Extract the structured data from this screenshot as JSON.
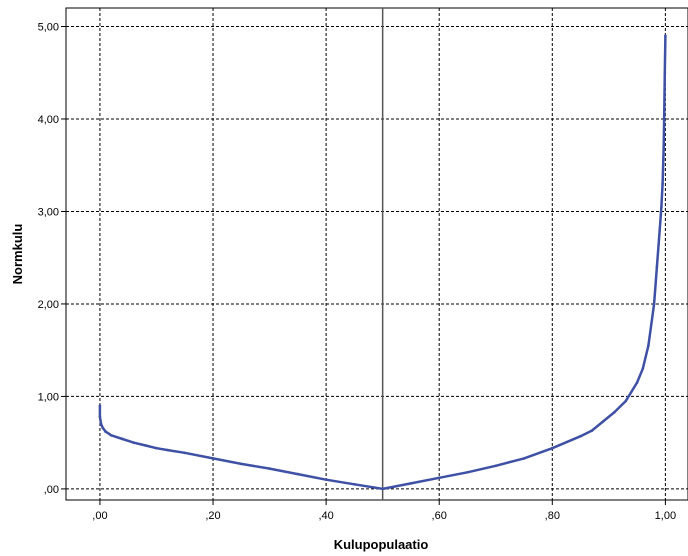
{
  "chart_data": {
    "type": "scatter",
    "title": "",
    "xlabel": "Kulupopulaatio",
    "ylabel": "Normkulu",
    "xlim": [
      -0.06,
      1.04
    ],
    "ylim": [
      -0.12,
      5.2
    ],
    "x_ticks": [
      0.0,
      0.2,
      0.4,
      0.6,
      0.8,
      1.0
    ],
    "x_tick_labels": [
      ",00",
      ",20",
      ",40",
      ",60",
      ",80",
      "1,00"
    ],
    "y_ticks": [
      0.0,
      1.0,
      2.0,
      3.0,
      4.0,
      5.0
    ],
    "y_tick_labels": [
      ",00",
      "1,00",
      "2,00",
      "3,00",
      "4,00",
      "5,00"
    ],
    "grid": true,
    "reference_line_x": 0.5,
    "series": [
      {
        "color": "#3f51a5",
        "x": [
          0.0,
          0.0,
          0.002,
          0.005,
          0.01,
          0.02,
          0.04,
          0.06,
          0.08,
          0.1,
          0.12,
          0.15,
          0.2,
          0.25,
          0.3,
          0.35,
          0.4,
          0.45,
          0.5,
          0.55,
          0.6,
          0.65,
          0.7,
          0.75,
          0.8,
          0.85,
          0.87,
          0.89,
          0.91,
          0.93,
          0.95,
          0.96,
          0.97,
          0.98,
          0.985,
          0.99,
          0.993,
          0.995,
          0.997,
          0.998,
          0.999,
          1.0
        ],
        "y": [
          0.9,
          0.78,
          0.7,
          0.66,
          0.62,
          0.58,
          0.54,
          0.5,
          0.47,
          0.44,
          0.42,
          0.39,
          0.33,
          0.27,
          0.22,
          0.16,
          0.1,
          0.05,
          0.0,
          0.06,
          0.12,
          0.18,
          0.25,
          0.33,
          0.44,
          0.57,
          0.63,
          0.73,
          0.83,
          0.95,
          1.15,
          1.3,
          1.55,
          2.0,
          2.4,
          2.8,
          3.05,
          3.3,
          3.7,
          4.1,
          4.5,
          4.9
        ]
      }
    ]
  }
}
